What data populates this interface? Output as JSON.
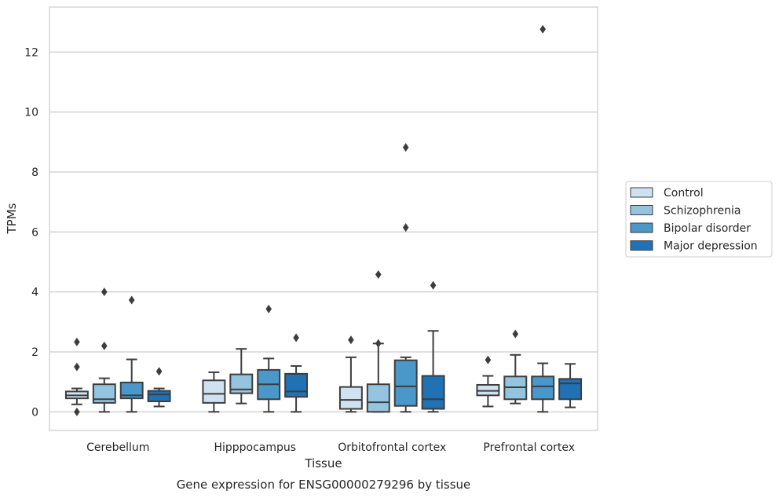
{
  "caption": "Gene expression for ENSG00000279296 by tissue",
  "chart_data": {
    "type": "boxplot",
    "title": "",
    "xlabel": "Tissue",
    "ylabel": "TPMs",
    "ylim": [
      -0.62,
      13.5
    ],
    "yticks": [
      0,
      2,
      4,
      6,
      8,
      10,
      12
    ],
    "grid": "horizontal",
    "legend_placement": "right",
    "categories": [
      "Cerebellum",
      "Hipppocampus",
      "Orbitofrontal cortex",
      "Prefrontal cortex"
    ],
    "series": [
      {
        "name": "Control",
        "color": "#d0e1f2",
        "boxes": [
          {
            "whislo": 0.25,
            "q1": 0.45,
            "med": 0.55,
            "q3": 0.68,
            "whishi": 0.78,
            "fliers": [
              2.33,
              1.5,
              0.0
            ]
          },
          {
            "whislo": 0.0,
            "q1": 0.3,
            "med": 0.6,
            "q3": 1.05,
            "whishi": 1.32,
            "fliers": []
          },
          {
            "whislo": 0.0,
            "q1": 0.1,
            "med": 0.4,
            "q3": 0.83,
            "whishi": 1.82,
            "fliers": [
              2.4
            ]
          },
          {
            "whislo": 0.18,
            "q1": 0.55,
            "med": 0.7,
            "q3": 0.9,
            "whishi": 1.2,
            "fliers": [
              1.73
            ]
          }
        ]
      },
      {
        "name": "Schizophrenia",
        "color": "#94c4df",
        "boxes": [
          {
            "whislo": 0.0,
            "q1": 0.3,
            "med": 0.42,
            "q3": 0.92,
            "whishi": 1.12,
            "fliers": [
              4.0,
              2.2
            ]
          },
          {
            "whislo": 0.28,
            "q1": 0.62,
            "med": 0.75,
            "q3": 1.25,
            "whishi": 2.1,
            "fliers": []
          },
          {
            "whislo": 0.0,
            "q1": 0.0,
            "med": 0.32,
            "q3": 0.92,
            "whishi": 2.28,
            "fliers": [
              4.58,
              2.28
            ]
          },
          {
            "whislo": 0.28,
            "q1": 0.42,
            "med": 0.82,
            "q3": 1.18,
            "whishi": 1.9,
            "fliers": [
              2.6
            ]
          }
        ]
      },
      {
        "name": "Bipolar disorder",
        "color": "#4a98c9",
        "boxes": [
          {
            "whislo": 0.0,
            "q1": 0.45,
            "med": 0.55,
            "q3": 0.98,
            "whishi": 1.75,
            "fliers": [
              3.73
            ]
          },
          {
            "whislo": 0.0,
            "q1": 0.42,
            "med": 0.92,
            "q3": 1.4,
            "whishi": 1.78,
            "fliers": [
              3.43
            ]
          },
          {
            "whislo": 0.0,
            "q1": 0.2,
            "med": 0.85,
            "q3": 1.72,
            "whishi": 1.82,
            "fliers": [
              8.82,
              6.15
            ]
          },
          {
            "whislo": 0.0,
            "q1": 0.42,
            "med": 0.85,
            "q3": 1.18,
            "whishi": 1.62,
            "fliers": [
              12.76
            ]
          }
        ]
      },
      {
        "name": "Major depression",
        "color": "#2171b5",
        "boxes": [
          {
            "whislo": 0.18,
            "q1": 0.35,
            "med": 0.58,
            "q3": 0.7,
            "whishi": 0.78,
            "fliers": [
              1.35
            ]
          },
          {
            "whislo": 0.0,
            "q1": 0.5,
            "med": 0.68,
            "q3": 1.27,
            "whishi": 1.53,
            "fliers": [
              2.47
            ]
          },
          {
            "whislo": 0.0,
            "q1": 0.1,
            "med": 0.42,
            "q3": 1.2,
            "whishi": 2.7,
            "fliers": [
              4.22
            ]
          },
          {
            "whislo": 0.15,
            "q1": 0.42,
            "med": 0.95,
            "q3": 1.1,
            "whishi": 1.6,
            "fliers": []
          }
        ]
      }
    ]
  }
}
